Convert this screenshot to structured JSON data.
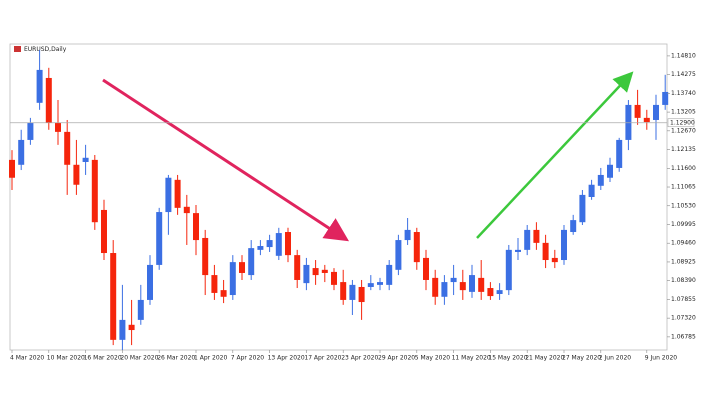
{
  "chart_data": {
    "type": "candlestick",
    "title": "EURUSD,Daily",
    "categories": [
      "4 Mar 2020",
      null,
      null,
      null,
      "10 Mar 2020",
      null,
      null,
      null,
      "16 Mar 2020",
      null,
      null,
      null,
      "20 Mar 2020",
      null,
      null,
      null,
      "26 Mar 2020",
      null,
      null,
      null,
      "1 Apr 2020",
      null,
      null,
      null,
      "7 Apr 2020",
      null,
      null,
      null,
      "13 Apr 2020",
      null,
      null,
      null,
      "17 Apr 2020",
      null,
      null,
      null,
      "23 Apr 2020",
      null,
      null,
      null,
      "29 Apr 2020",
      null,
      null,
      null,
      "5 May 2020",
      null,
      null,
      null,
      "11 May 2020",
      null,
      null,
      null,
      "15 May 2020",
      null,
      null,
      null,
      "21 May 2020",
      null,
      null,
      null,
      "27 May 2020",
      null,
      null,
      null,
      "2 Jun 2020",
      null,
      null,
      null,
      null,
      "9 Jun 2020",
      null,
      null
    ],
    "open": [
      1.1184,
      1.117,
      1.1241,
      1.1347,
      1.1418,
      1.129,
      1.1264,
      1.117,
      1.1178,
      1.1184,
      1.1041,
      1.0918,
      1.067,
      1.0713,
      1.0727,
      1.0784,
      1.0884,
      1.1035,
      1.1127,
      1.105,
      1.1032,
      1.0961,
      1.0855,
      1.0812,
      1.0798,
      1.0892,
      1.0855,
      1.0927,
      1.0935,
      1.091,
      1.0978,
      1.0912,
      1.0832,
      1.0875,
      1.087,
      1.0864,
      1.0835,
      1.0784,
      1.0821,
      1.0821,
      1.0827,
      1.0827,
      1.087,
      1.0955,
      1.0978,
      1.0904,
      1.0847,
      1.0793,
      1.0835,
      1.0835,
      1.0807,
      1.0847,
      1.0818,
      1.0801,
      1.0812,
      1.0921,
      1.0927,
      1.0984,
      1.0947,
      1.0904,
      1.0898,
      1.0978,
      1.1006,
      1.1078,
      1.111,
      1.1133,
      1.1161,
      1.1241,
      1.1341,
      1.1304,
      1.1298,
      1.1341
    ],
    "high": [
      1.1212,
      1.127,
      1.1304,
      1.1498,
      1.1447,
      1.1355,
      1.1298,
      1.1241,
      1.1227,
      1.1198,
      1.107,
      1.0955,
      1.0827,
      1.0784,
      1.0827,
      1.0912,
      1.1047,
      1.1141,
      1.1141,
      1.1084,
      1.1055,
      1.0984,
      1.0884,
      1.0841,
      1.0912,
      1.0912,
      1.0955,
      1.0955,
      1.097,
      1.099,
      1.099,
      1.0927,
      1.0904,
      1.0898,
      1.0884,
      1.0875,
      1.087,
      1.0841,
      1.0841,
      1.0855,
      1.0847,
      1.0898,
      1.097,
      1.1018,
      1.099,
      1.0927,
      1.087,
      1.0855,
      1.0884,
      1.087,
      1.0884,
      1.0898,
      1.0835,
      1.0832,
      1.0941,
      1.0961,
      1.0998,
      1.1006,
      1.097,
      1.0927,
      1.0998,
      1.1027,
      1.1098,
      1.1127,
      1.1161,
      1.119,
      1.1247,
      1.1355,
      1.1384,
      1.1327,
      1.137,
      1.1427
    ],
    "low": [
      1.1098,
      1.1155,
      1.1227,
      1.1327,
      1.127,
      1.1227,
      1.1084,
      1.1084,
      1.1141,
      1.0984,
      1.0898,
      1.0655,
      1.0641,
      1.0655,
      1.0713,
      1.077,
      1.087,
      1.097,
      1.1027,
      1.0941,
      1.0912,
      1.0798,
      1.0784,
      1.0775,
      1.0784,
      1.0841,
      1.0841,
      1.0912,
      1.0921,
      1.0898,
      1.0892,
      1.0818,
      1.0812,
      1.0827,
      1.0835,
      1.0812,
      1.077,
      1.0741,
      1.0727,
      1.0812,
      1.0812,
      1.0812,
      1.0855,
      1.0941,
      1.087,
      1.0812,
      1.077,
      1.077,
      1.0798,
      1.0784,
      1.079,
      1.0784,
      1.0784,
      1.0784,
      1.0798,
      1.0898,
      1.0912,
      1.0927,
      1.0875,
      1.0875,
      1.0884,
      1.097,
      1.0998,
      1.107,
      1.1098,
      1.1121,
      1.115,
      1.1212,
      1.1284,
      1.127,
      1.1241,
      1.1327
    ],
    "close": [
      1.1133,
      1.1241,
      1.129,
      1.1441,
      1.129,
      1.1264,
      1.117,
      1.1113,
      1.119,
      1.1006,
      1.0918,
      1.067,
      1.0727,
      1.0698,
      1.0784,
      1.0884,
      1.1035,
      1.1133,
      1.1047,
      1.1032,
      1.0955,
      1.0855,
      1.0804,
      1.0793,
      1.0892,
      1.0861,
      1.0932,
      1.0938,
      1.0955,
      1.0975,
      1.0912,
      1.0841,
      1.0884,
      1.0855,
      1.0861,
      1.0827,
      1.0784,
      1.0827,
      1.0778,
      1.0832,
      1.0835,
      1.0884,
      1.0955,
      1.0984,
      1.0892,
      1.0841,
      1.0793,
      1.0835,
      1.0847,
      1.0812,
      1.0855,
      1.0807,
      1.0795,
      1.0812,
      1.0927,
      1.0927,
      1.0984,
      1.0947,
      1.0898,
      1.0892,
      1.0984,
      1.1012,
      1.1084,
      1.1113,
      1.1141,
      1.117,
      1.1241,
      1.1341,
      1.1304,
      1.1292,
      1.1341,
      1.1378
    ],
    "up_color": "#3b6fe3",
    "down_color": "#f5250c",
    "ylim": [
      1.0641,
      1.1515
    ],
    "yticks": [
      {
        "value": 1.1481,
        "label": "1.14810"
      },
      {
        "value": 1.14275,
        "label": "1.14275"
      },
      {
        "value": 1.1374,
        "label": "1.13740"
      },
      {
        "value": 1.13205,
        "label": "1.13205"
      },
      {
        "value": 1.1267,
        "label": "1.12670"
      },
      {
        "value": 1.12135,
        "label": "1.12135"
      },
      {
        "value": 1.116,
        "label": "1.11600"
      },
      {
        "value": 1.11065,
        "label": "1.11065"
      },
      {
        "value": 1.1053,
        "label": "1.10530"
      },
      {
        "value": 1.09995,
        "label": "1.09995"
      },
      {
        "value": 1.0946,
        "label": "1.09460"
      },
      {
        "value": 1.08925,
        "label": "1.08925"
      },
      {
        "value": 1.0839,
        "label": "1.08390"
      },
      {
        "value": 1.07855,
        "label": "1.07855"
      },
      {
        "value": 1.0732,
        "label": "1.07320"
      },
      {
        "value": 1.06785,
        "label": "1.06785"
      }
    ],
    "price_line": {
      "value": 1.129,
      "label": "1.12900"
    },
    "grid": false
  }
}
